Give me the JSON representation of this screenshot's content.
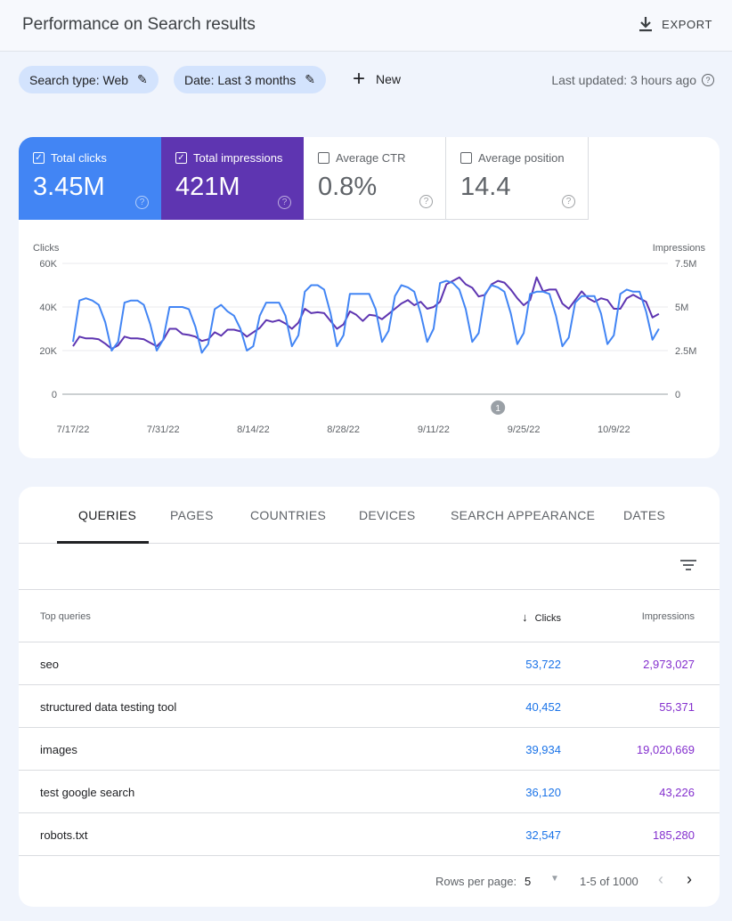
{
  "header": {
    "title": "Performance on Search results",
    "export_label": "EXPORT",
    "export_icon": "download-icon"
  },
  "filters": {
    "search_type": "Search type: Web",
    "date": "Date: Last 3 months",
    "new_label": "New",
    "last_updated": "Last updated: 3 hours ago"
  },
  "metrics": [
    {
      "label": "Total clicks",
      "value": "3.45M",
      "checked": true,
      "color": "#4285f4"
    },
    {
      "label": "Total impressions",
      "value": "421M",
      "checked": true,
      "color": "#5e35b1"
    },
    {
      "label": "Average CTR",
      "value": "0.8%",
      "checked": false
    },
    {
      "label": "Average position",
      "value": "14.4",
      "checked": false
    }
  ],
  "chart_data": {
    "type": "line",
    "left_axis_label": "Clicks",
    "right_axis_label": "Impressions",
    "left_ticks": [
      "0",
      "20K",
      "40K",
      "60K"
    ],
    "right_ticks": [
      "0",
      "2.5M",
      "5M",
      "7.5M"
    ],
    "left_ylim": [
      0,
      60000
    ],
    "right_ylim": [
      0,
      7500000
    ],
    "x_tick_labels": [
      "7/17/22",
      "7/31/22",
      "8/14/22",
      "8/28/22",
      "9/11/22",
      "9/25/22",
      "10/9/22"
    ],
    "grid": true,
    "annotation": {
      "date": "9/21/22",
      "label": "1"
    },
    "x": [
      "7/17",
      "7/18",
      "7/19",
      "7/20",
      "7/21",
      "7/22",
      "7/23",
      "7/24",
      "7/25",
      "7/26",
      "7/27",
      "7/28",
      "7/29",
      "7/30",
      "7/31",
      "8/1",
      "8/2",
      "8/3",
      "8/4",
      "8/5",
      "8/6",
      "8/7",
      "8/8",
      "8/9",
      "8/10",
      "8/11",
      "8/12",
      "8/13",
      "8/14",
      "8/15",
      "8/16",
      "8/17",
      "8/18",
      "8/19",
      "8/20",
      "8/21",
      "8/22",
      "8/23",
      "8/24",
      "8/25",
      "8/26",
      "8/27",
      "8/28",
      "8/29",
      "8/30",
      "8/31",
      "9/1",
      "9/2",
      "9/3",
      "9/4",
      "9/5",
      "9/6",
      "9/7",
      "9/8",
      "9/9",
      "9/10",
      "9/11",
      "9/12",
      "9/13",
      "9/14",
      "9/15",
      "9/16",
      "9/17",
      "9/18",
      "9/19",
      "9/20",
      "9/21",
      "9/22",
      "9/23",
      "9/24",
      "9/25",
      "9/26",
      "9/27",
      "9/28",
      "9/29",
      "9/30",
      "10/1",
      "10/2",
      "10/3",
      "10/4",
      "10/5",
      "10/6",
      "10/7",
      "10/8",
      "10/9",
      "10/10",
      "10/11",
      "10/12",
      "10/13",
      "10/14",
      "10/15",
      "10/16"
    ],
    "series": [
      {
        "name": "Clicks",
        "axis": "left",
        "color": "#4285f4",
        "values": [
          24000,
          43000,
          44000,
          43000,
          41000,
          33000,
          20000,
          24000,
          42000,
          43000,
          43000,
          41000,
          32000,
          20000,
          25000,
          40000,
          40000,
          40000,
          39000,
          31000,
          19000,
          23000,
          39000,
          41000,
          38000,
          36000,
          30000,
          20000,
          22000,
          36000,
          42000,
          42000,
          42000,
          36000,
          22000,
          27000,
          47000,
          50000,
          50000,
          48000,
          37000,
          22000,
          27000,
          46000,
          46000,
          46000,
          46000,
          39000,
          24000,
          29000,
          45000,
          50000,
          49000,
          47000,
          37000,
          24000,
          30000,
          51000,
          52000,
          51000,
          48000,
          39000,
          24000,
          28000,
          46000,
          50000,
          49000,
          47000,
          37000,
          23000,
          28000,
          46000,
          47000,
          47000,
          46000,
          36000,
          22000,
          26000,
          42000,
          45000,
          45000,
          45000,
          37000,
          23000,
          27000,
          46000,
          48000,
          47000,
          47000,
          38000,
          25000,
          30000
        ]
      },
      {
        "name": "Impressions",
        "axis": "right",
        "color": "#5e35b1",
        "values": [
          2750000,
          3300000,
          3200000,
          3200000,
          3150000,
          2900000,
          2600000,
          2800000,
          3300000,
          3200000,
          3200000,
          3150000,
          2950000,
          2750000,
          3100000,
          3750000,
          3750000,
          3450000,
          3400000,
          3300000,
          3050000,
          3150000,
          3550000,
          3350000,
          3700000,
          3700000,
          3600000,
          3300000,
          3550000,
          3800000,
          4250000,
          4150000,
          4250000,
          4050000,
          3750000,
          4100000,
          4900000,
          4650000,
          4700000,
          4650000,
          4200000,
          3750000,
          4000000,
          4750000,
          4550000,
          4200000,
          4550000,
          4500000,
          4300000,
          4600000,
          4900000,
          5200000,
          5400000,
          5100000,
          5300000,
          4900000,
          5000000,
          5300000,
          6300000,
          6500000,
          6700000,
          6300000,
          6100000,
          5600000,
          5700000,
          6300000,
          6500000,
          6400000,
          6000000,
          5500000,
          5100000,
          5400000,
          6700000,
          5900000,
          6000000,
          6000000,
          5200000,
          4900000,
          5400000,
          5900000,
          5500000,
          5300000,
          5500000,
          5400000,
          4900000,
          4900000,
          5500000,
          5700000,
          5500000,
          5300000,
          4400000,
          4600000
        ]
      }
    ]
  },
  "tabs": [
    "QUERIES",
    "PAGES",
    "COUNTRIES",
    "DEVICES",
    "SEARCH APPEARANCE",
    "DATES"
  ],
  "table": {
    "headers": {
      "query": "Top queries",
      "clicks": "Clicks",
      "impressions": "Impressions"
    },
    "rows": [
      {
        "query": "seo",
        "clicks": "53,722",
        "impressions": "2,973,027"
      },
      {
        "query": "structured data testing tool",
        "clicks": "40,452",
        "impressions": "55,371"
      },
      {
        "query": "images",
        "clicks": "39,934",
        "impressions": "19,020,669"
      },
      {
        "query": "test google search",
        "clicks": "36,120",
        "impressions": "43,226"
      },
      {
        "query": "robots.txt",
        "clicks": "32,547",
        "impressions": "185,280"
      }
    ],
    "pagination": {
      "rows_per_page_label": "Rows per page:",
      "rows_per_page": "5",
      "range": "1-5 of 1000"
    }
  }
}
